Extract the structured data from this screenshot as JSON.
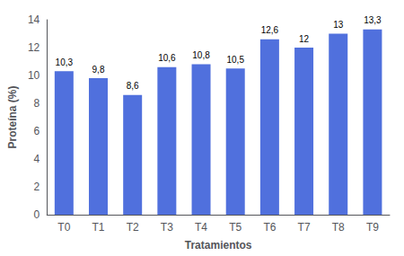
{
  "chart_data": {
    "type": "bar",
    "categories": [
      "T0",
      "T1",
      "T2",
      "T3",
      "T4",
      "T5",
      "T6",
      "T7",
      "T8",
      "T9"
    ],
    "values": [
      10.3,
      9.8,
      8.6,
      10.6,
      10.8,
      10.5,
      12.6,
      12.0,
      13.0,
      13.3
    ],
    "value_labels": [
      "10,3",
      "9,8",
      "8,6",
      "10,6",
      "10,8",
      "10,5",
      "12,6",
      "12",
      "13",
      "13,3"
    ],
    "data_labels": true,
    "xlabel": "Tratamientos",
    "ylabel": "Proteína (%)",
    "ylim": [
      0,
      14
    ],
    "yticks": [
      0,
      2,
      4,
      6,
      8,
      10,
      12,
      14
    ],
    "grid": false
  }
}
